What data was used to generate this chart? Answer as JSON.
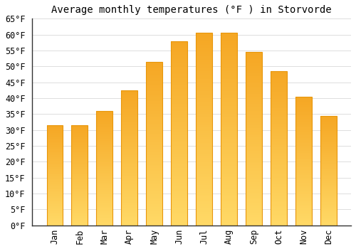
{
  "title": "Average monthly temperatures (°F ) in Storvorde",
  "months": [
    "Jan",
    "Feb",
    "Mar",
    "Apr",
    "May",
    "Jun",
    "Jul",
    "Aug",
    "Sep",
    "Oct",
    "Nov",
    "Dec"
  ],
  "values": [
    31.5,
    31.5,
    36.0,
    42.5,
    51.5,
    58.0,
    60.5,
    60.5,
    54.5,
    48.5,
    40.5,
    34.5
  ],
  "bar_color_top": "#F5A623",
  "bar_color_bottom": "#FFD966",
  "bar_edge_color": "#E8960A",
  "background_color": "#FFFFFF",
  "grid_color": "#DDDDDD",
  "ylim": [
    0,
    65
  ],
  "yticks": [
    0,
    5,
    10,
    15,
    20,
    25,
    30,
    35,
    40,
    45,
    50,
    55,
    60,
    65
  ],
  "title_fontsize": 10,
  "tick_fontsize": 8.5,
  "font_family": "monospace",
  "bar_width": 0.65
}
